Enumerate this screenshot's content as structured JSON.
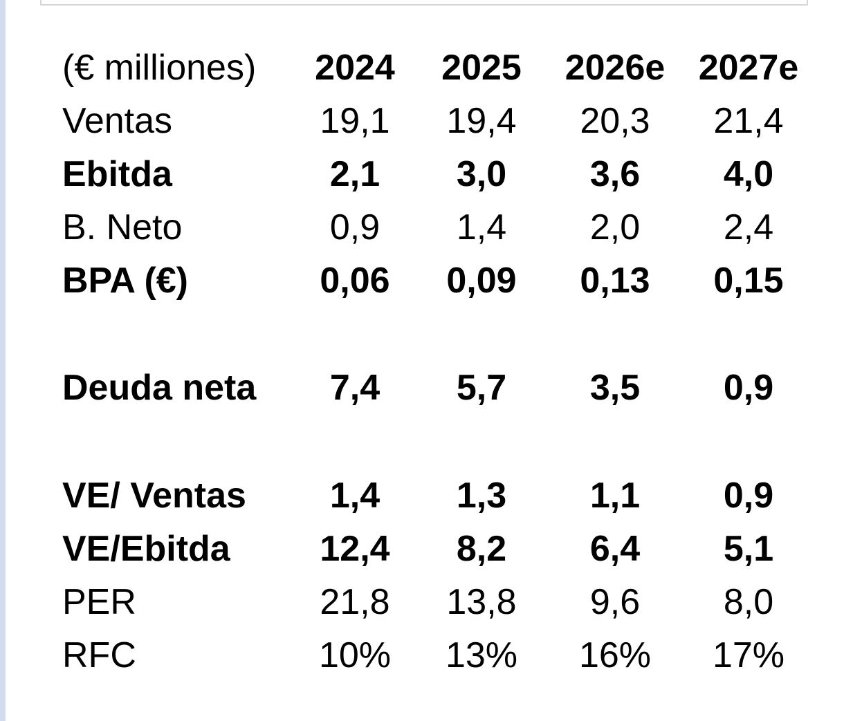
{
  "table": {
    "header": {
      "unit_label": "(€ milliones)",
      "years": [
        "2024",
        "2025",
        "2026e",
        "2027e"
      ]
    },
    "rows": [
      {
        "label": "Ventas",
        "values": [
          "19,1",
          "19,4",
          "20,3",
          "21,4"
        ],
        "bold": false
      },
      {
        "label": "Ebitda",
        "values": [
          "2,1",
          "3,0",
          "3,6",
          "4,0"
        ],
        "bold": true
      },
      {
        "label": "B. Neto",
        "values": [
          "0,9",
          "1,4",
          "2,0",
          "2,4"
        ],
        "bold": false
      },
      {
        "label": "BPA (€)",
        "values": [
          "0,06",
          "0,09",
          "0,13",
          "0,15"
        ],
        "bold": true
      },
      {
        "label": "Deuda neta",
        "values": [
          "7,4",
          "5,7",
          "3,5",
          "0,9"
        ],
        "bold": true
      },
      {
        "label": "VE/ Ventas",
        "values": [
          "1,4",
          "1,3",
          "1,1",
          "0,9"
        ],
        "bold": true
      },
      {
        "label": "VE/Ebitda",
        "values": [
          "12,4",
          "8,2",
          "6,4",
          "5,1"
        ],
        "bold": true
      },
      {
        "label": "PER",
        "values": [
          "21,8",
          "13,8",
          "9,6",
          "8,0"
        ],
        "bold": false
      },
      {
        "label": "RFC",
        "values": [
          "10%",
          "13%",
          "16%",
          "17%"
        ],
        "bold": false
      }
    ]
  }
}
